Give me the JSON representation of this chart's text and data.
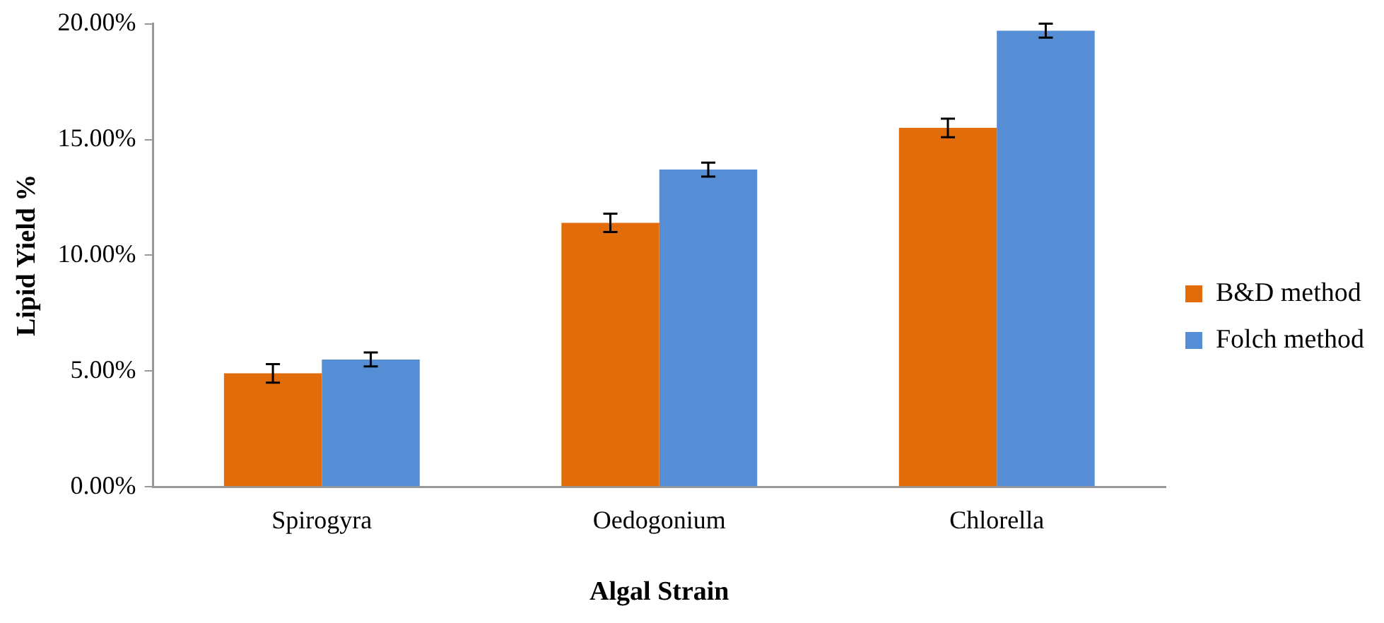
{
  "chart_data": {
    "type": "bar",
    "xlabel": "Algal Strain",
    "ylabel": "Lipid Yield %",
    "categories": [
      "Spirogyra",
      "Oedogonium",
      "Chlorella"
    ],
    "series": [
      {
        "name": "B&D method",
        "color": "#e36c0a",
        "values": [
          4.9,
          11.4,
          15.5
        ],
        "errors": [
          0.4,
          0.4,
          0.4
        ]
      },
      {
        "name": "Folch method",
        "color": "#558ed5",
        "values": [
          5.5,
          13.7,
          19.7
        ],
        "errors": [
          0.3,
          0.3,
          0.3
        ]
      }
    ],
    "ylim": [
      0,
      20
    ],
    "yticks": [
      {
        "value": 0,
        "label": "0.00%"
      },
      {
        "value": 5,
        "label": "5.00%"
      },
      {
        "value": 10,
        "label": "10.00%"
      },
      {
        "value": 15,
        "label": "15.00%"
      },
      {
        "value": 20,
        "label": "20.00%"
      }
    ],
    "grid": false,
    "legend": "right"
  }
}
